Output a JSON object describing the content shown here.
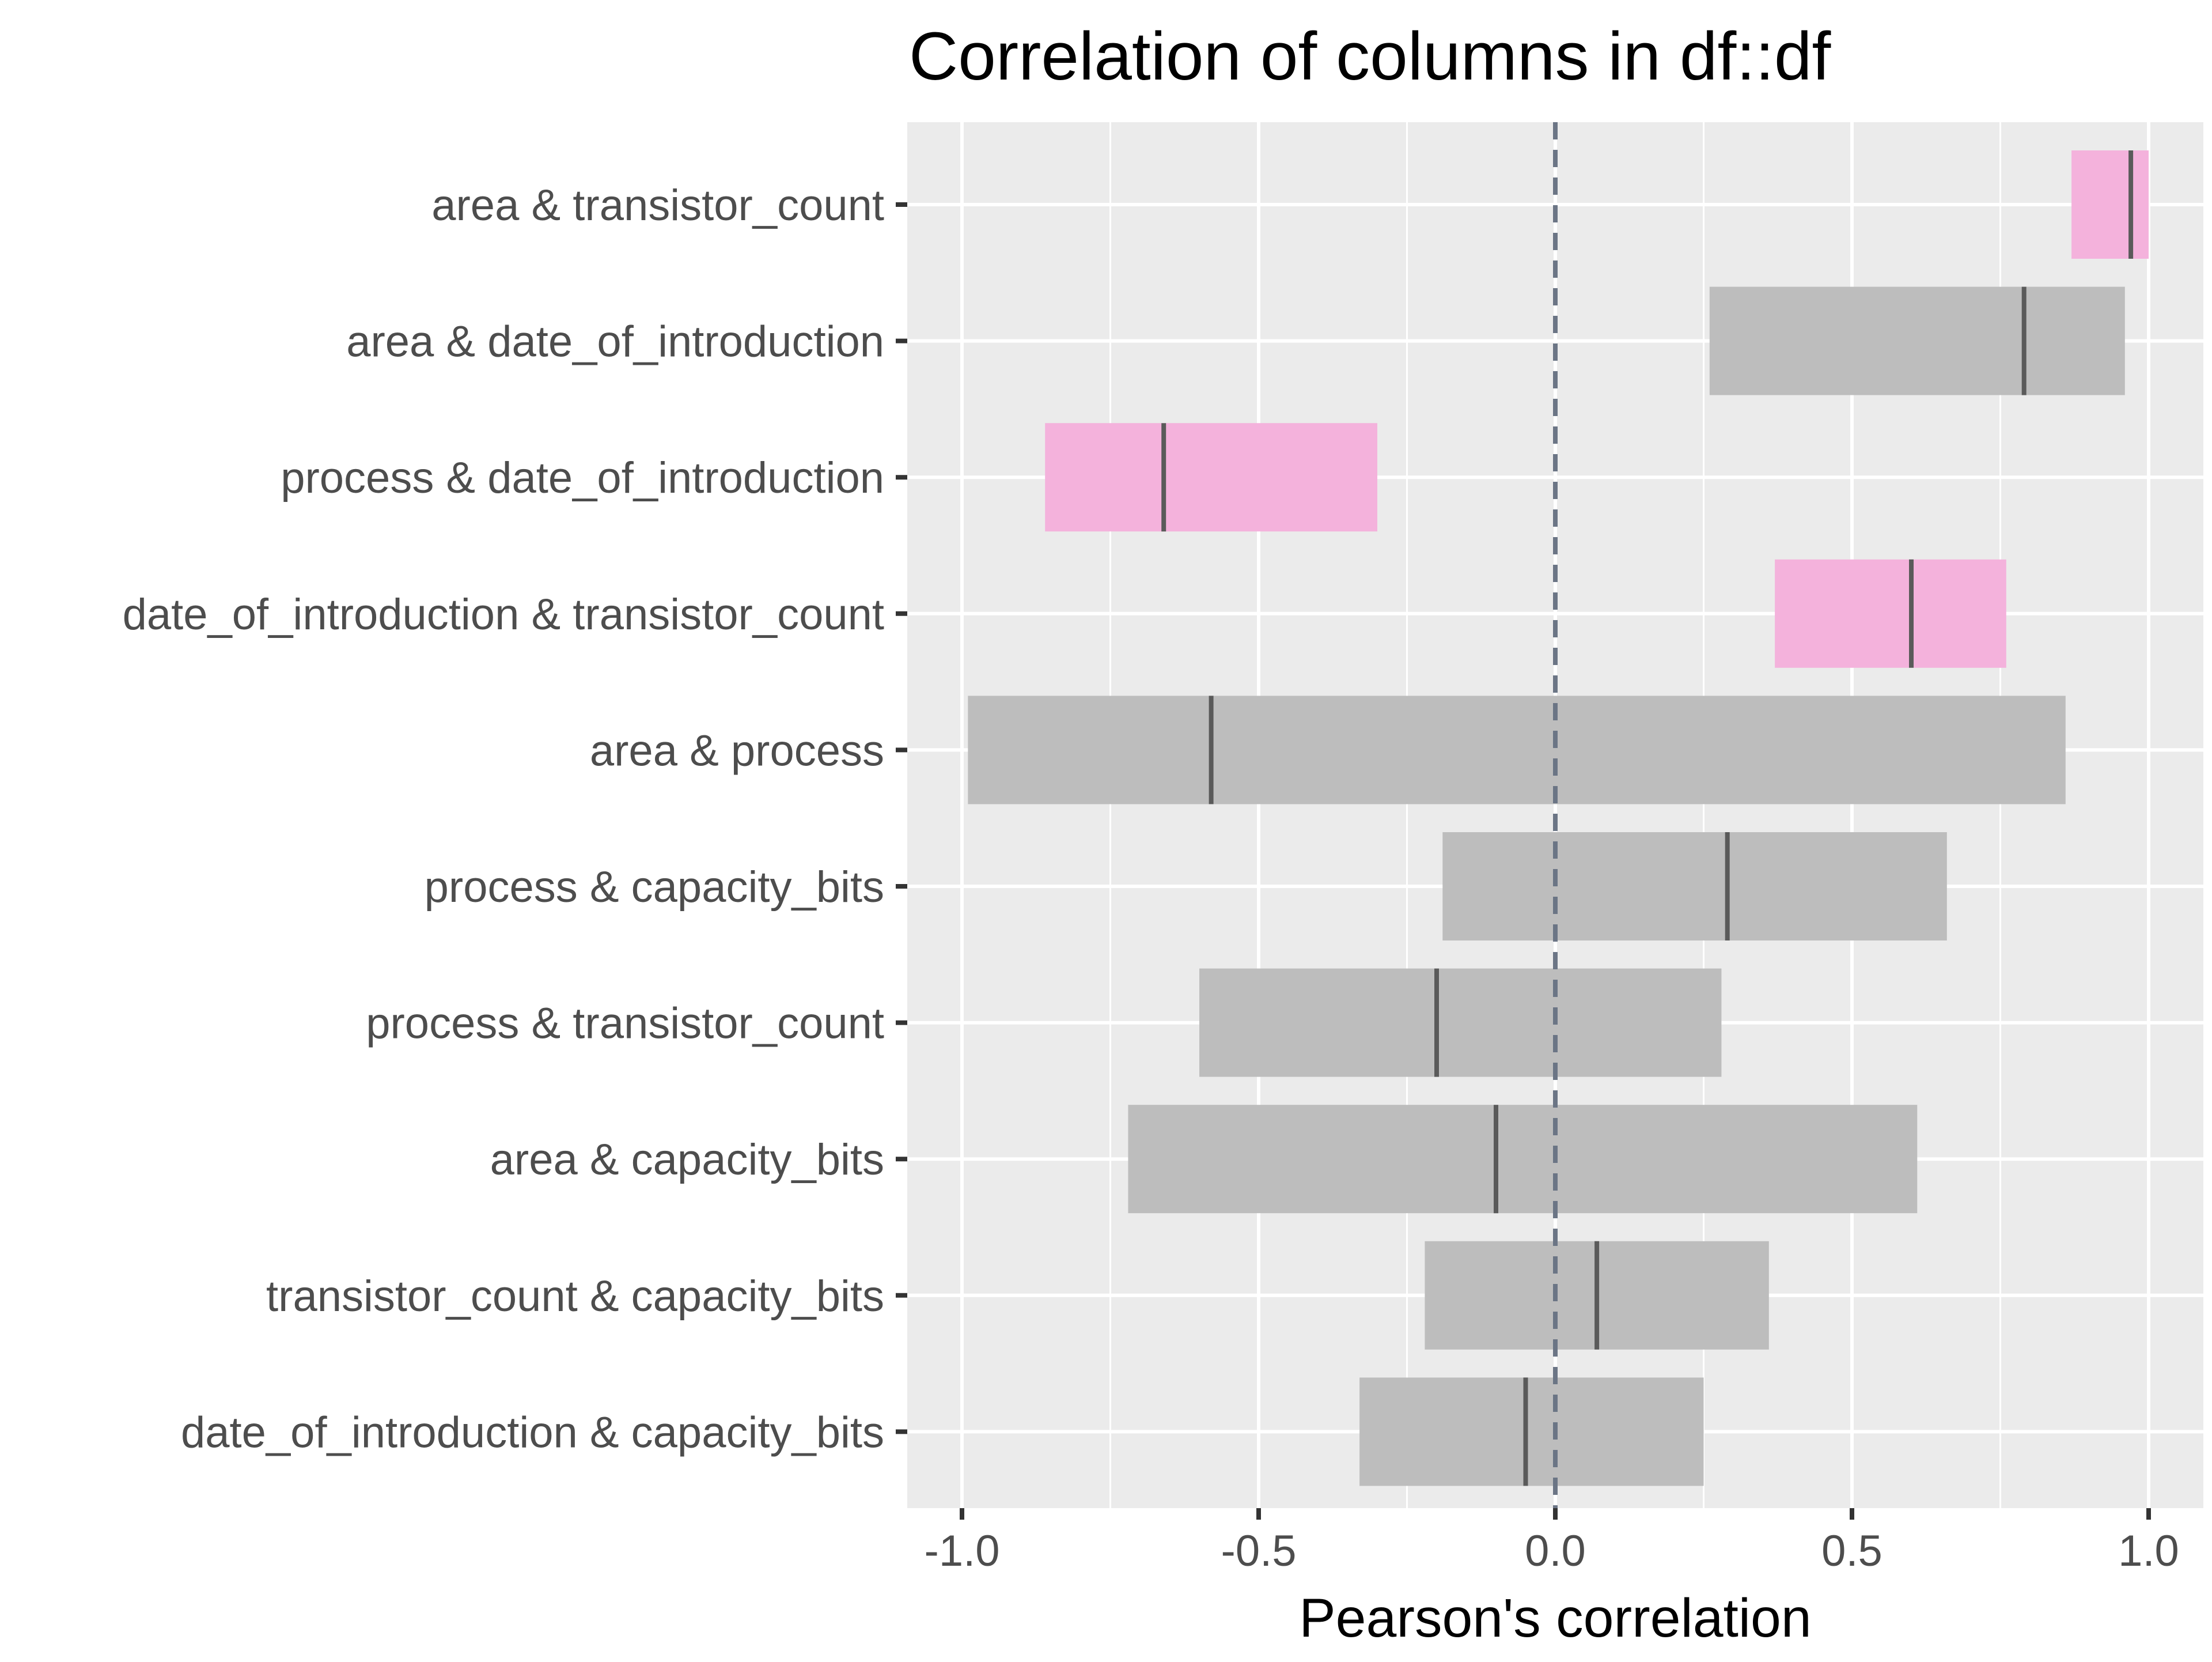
{
  "chart_data": {
    "type": "bar",
    "title": "Correlation of columns in df::df",
    "xlabel": "Pearson's correlation",
    "ylabel": "",
    "xlim": [
      -1.1,
      1.1
    ],
    "x_ticks": [
      {
        "value": -1.0,
        "label": "-1.0"
      },
      {
        "value": -0.5,
        "label": "-0.5"
      },
      {
        "value": 0.0,
        "label": "0.0"
      },
      {
        "value": 0.5,
        "label": "0.5"
      },
      {
        "value": 1.0,
        "label": "1.0"
      }
    ],
    "reference_line": {
      "x": 0,
      "style": "dashed"
    },
    "grid": true,
    "legend": "none",
    "colors": {
      "significant": "#f4b2dc",
      "not_significant": "#bdbdbd",
      "estimate_line": "#5a5a5a",
      "reference_line": "#6b7585",
      "panel_background": "#ebebeb",
      "grid": "#ffffff"
    },
    "pairs": [
      {
        "label": "area & transistor_count",
        "estimate": 0.97,
        "ci_low": 0.87,
        "ci_high": 1.0,
        "significant": true
      },
      {
        "label": "area & date_of_introduction",
        "estimate": 0.79,
        "ci_low": 0.26,
        "ci_high": 0.96,
        "significant": false
      },
      {
        "label": "process & date_of_introduction",
        "estimate": -0.66,
        "ci_low": -0.86,
        "ci_high": -0.3,
        "significant": true
      },
      {
        "label": "date_of_introduction & transistor_count",
        "estimate": 0.6,
        "ci_low": 0.37,
        "ci_high": 0.76,
        "significant": true
      },
      {
        "label": "area & process",
        "estimate": -0.58,
        "ci_low": -0.99,
        "ci_high": 0.86,
        "significant": false
      },
      {
        "label": "process & capacity_bits",
        "estimate": 0.29,
        "ci_low": -0.19,
        "ci_high": 0.66,
        "significant": false
      },
      {
        "label": "process & transistor_count",
        "estimate": -0.2,
        "ci_low": -0.6,
        "ci_high": 0.28,
        "significant": false
      },
      {
        "label": "area & capacity_bits",
        "estimate": -0.1,
        "ci_low": -0.72,
        "ci_high": 0.61,
        "significant": false
      },
      {
        "label": "transistor_count & capacity_bits",
        "estimate": 0.07,
        "ci_low": -0.22,
        "ci_high": 0.36,
        "significant": false
      },
      {
        "label": "date_of_introduction & capacity_bits",
        "estimate": -0.05,
        "ci_low": -0.33,
        "ci_high": 0.25,
        "significant": false
      }
    ]
  }
}
